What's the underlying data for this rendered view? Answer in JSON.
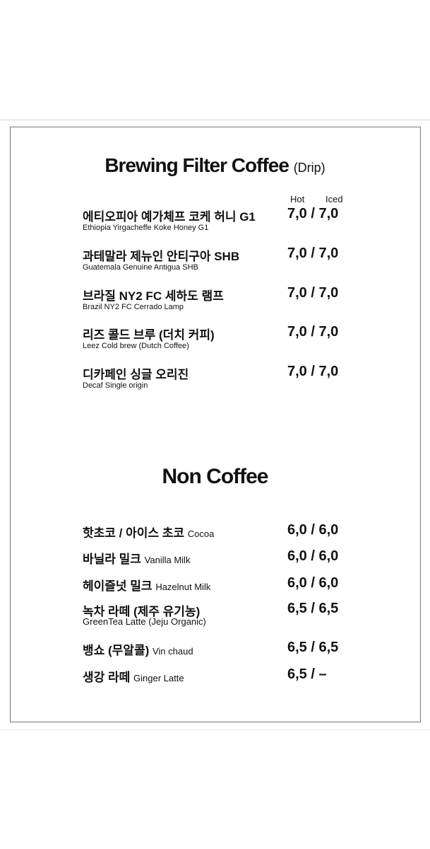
{
  "coffee": {
    "title": "Brewing Filter Coffee",
    "title_sub": "(Drip)",
    "col_hot": "Hot",
    "col_iced": "Iced",
    "items": [
      {
        "name": "에티오피아 예가체프 코케 허니 G1",
        "en": "Ethiopia Yirgacheffe Koke Honey G1",
        "price": "7,0 / 7,0"
      },
      {
        "name": "과테말라 제뉴인 안티구아 SHB",
        "en": "Guatemala Genuine Antigua SHB",
        "price": "7,0 / 7,0"
      },
      {
        "name": "브라질 NY2 FC 세하도 램프",
        "en": "Brazil NY2 FC Cerrado Lamp",
        "price": "7,0 / 7,0"
      },
      {
        "name": "리즈 콜드 브루 (더치 커피)",
        "en": "Leez Cold brew (Dutch Coffee)",
        "price": "7,0 / 7,0"
      },
      {
        "name": "디카페인 싱글 오리진",
        "en": "Decaf Single origin",
        "price": "7,0 / 7,0"
      }
    ]
  },
  "non_coffee": {
    "title": "Non Coffee",
    "items": [
      {
        "name": "핫초코 / 아이스 초코",
        "en": "Cocoa",
        "price": "6,0 / 6,0"
      },
      {
        "name": "바닐라 밀크",
        "en": "Vanilla Milk",
        "price": "6,0 / 6,0"
      },
      {
        "name": "헤이즐넛 밀크",
        "en": "Hazelnut Milk",
        "price": "6,0 / 6,0"
      },
      {
        "name": "녹차 라떼 (제주 유기농)",
        "en": "GreenTea Latte (Jeju Organic)",
        "price": "6,5 / 6,5"
      },
      {
        "name": "뱅쇼 (무알콜)",
        "en": "Vin chaud",
        "price": "6,5 / 6,5"
      },
      {
        "name": "생강 라떼",
        "en": "Ginger Latte",
        "price": "6,5 /  –"
      }
    ]
  }
}
